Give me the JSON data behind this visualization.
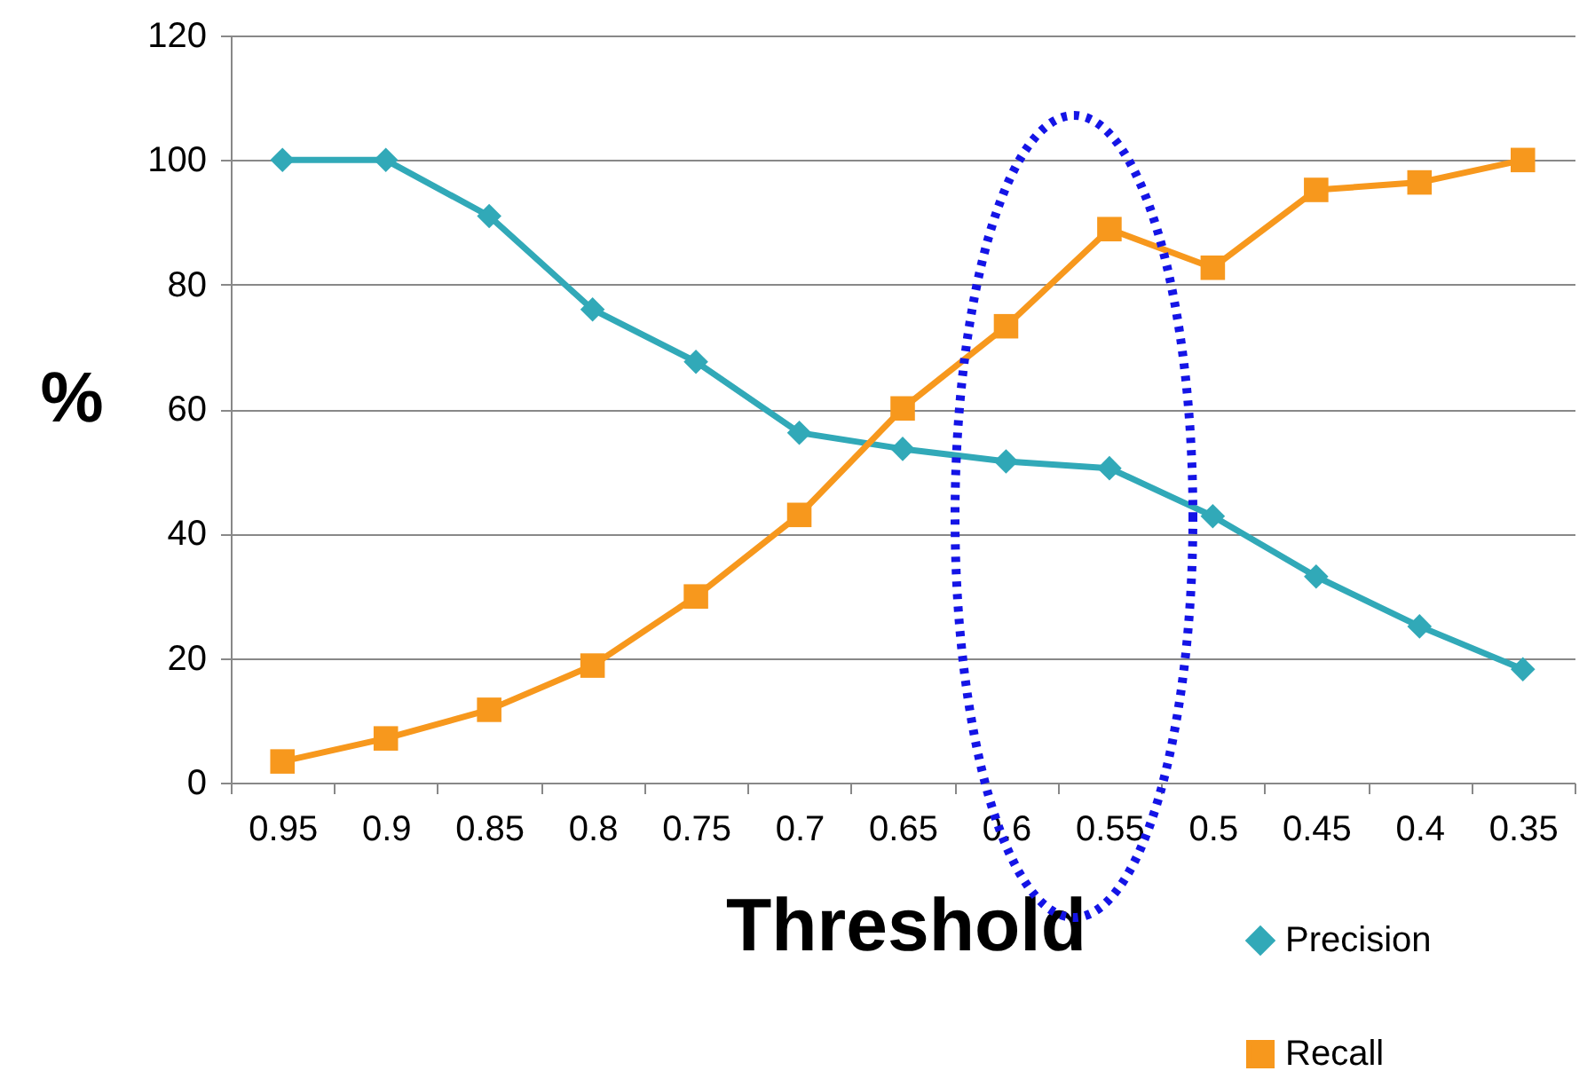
{
  "chart_data": {
    "type": "line",
    "xlabel": "Threshold",
    "ylabel": "%",
    "categories": [
      "0.95",
      "0.9",
      "0.85",
      "0.8",
      "0.75",
      "0.7",
      "0.65",
      "0.6",
      "0.55",
      "0.5",
      "0.45",
      "0.4",
      "0.35"
    ],
    "series": [
      {
        "name": "Precision",
        "color": "#31a9b8",
        "marker": "diamond",
        "values": [
          100,
          100,
          91,
          76,
          67.6,
          56.2,
          53.6,
          51.6,
          50.5,
          42.8,
          33.1,
          25.1,
          18.2
        ]
      },
      {
        "name": "Recall",
        "color": "#f7981d",
        "marker": "square",
        "values": [
          3.4,
          7.1,
          11.7,
          18.8,
          29.9,
          43,
          60.1,
          73.3,
          88.9,
          82.7,
          95.2,
          96.4,
          100
        ]
      }
    ],
    "ylim": [
      0,
      120
    ],
    "yticks": [
      0,
      20,
      40,
      60,
      80,
      100,
      120
    ],
    "grid": "y",
    "legend": "bottom right",
    "line_style": "solid"
  }
}
